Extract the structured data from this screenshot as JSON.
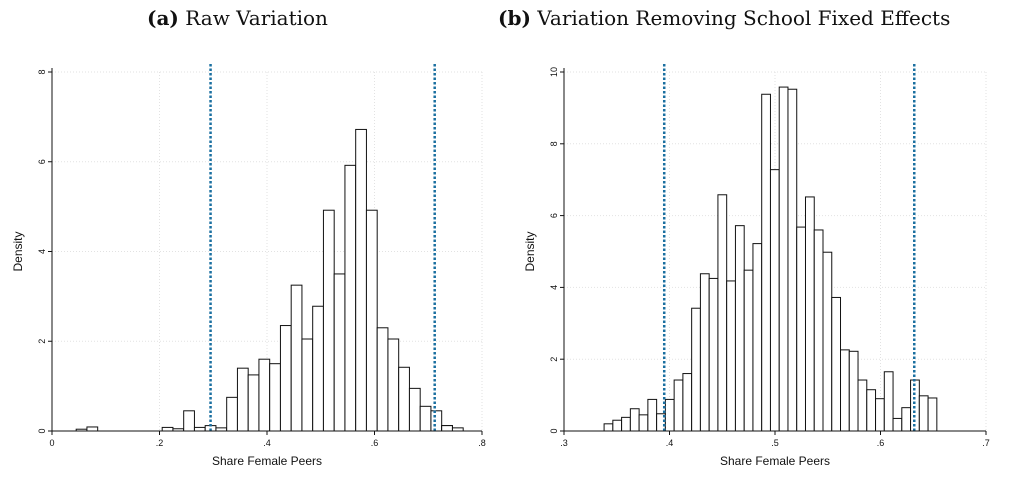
{
  "panels": [
    {
      "letter": "(a)",
      "title": "Raw Variation"
    },
    {
      "letter": "(b)",
      "title": "Variation Removing School Fixed Effects"
    }
  ],
  "chart_data": [
    {
      "type": "bar",
      "title": "Raw Variation",
      "xlabel": "Share Female Peers",
      "ylabel": "Density",
      "xlim": [
        0,
        0.8
      ],
      "ylim": [
        0,
        8
      ],
      "xticks": [
        0,
        0.2,
        0.4,
        0.6,
        0.8
      ],
      "xtick_labels": [
        "0",
        ".2",
        ".4",
        ".6",
        ".8"
      ],
      "yticks": [
        0,
        2,
        4,
        6,
        8
      ],
      "ytick_labels": [
        "0",
        "2",
        "4",
        "6",
        "8"
      ],
      "grid": true,
      "bin_width": 0.02,
      "bin_starts": [
        0.045,
        0.065,
        0.205,
        0.225,
        0.245,
        0.265,
        0.285,
        0.305,
        0.325,
        0.345,
        0.365,
        0.385,
        0.405,
        0.425,
        0.445,
        0.465,
        0.485,
        0.505,
        0.525,
        0.545,
        0.565,
        0.585,
        0.605,
        0.625,
        0.645,
        0.665,
        0.685,
        0.705,
        0.725
      ],
      "values": [
        0.04,
        0.09,
        0.08,
        0.05,
        0.45,
        0.08,
        0.12,
        0.07,
        0.75,
        1.4,
        1.25,
        1.6,
        1.5,
        2.35,
        3.25,
        2.05,
        2.78,
        4.92,
        3.5,
        5.92,
        6.72,
        4.92,
        2.3,
        2.05,
        1.42,
        0.95,
        0.55,
        0.45,
        0.12
      ],
      "extra_bins": [
        {
          "start": 0.725,
          "value": 0.12
        },
        {
          "start": 0.745,
          "value": 0.07
        }
      ],
      "reference_lines": [
        0.295,
        0.712
      ],
      "reference_color": "#1a6fa0"
    },
    {
      "type": "bar",
      "title": "Variation Removing School Fixed Effects",
      "xlabel": "Share Female Peers",
      "ylabel": "Density",
      "xlim": [
        0.3,
        0.7
      ],
      "ylim": [
        0,
        10
      ],
      "xticks": [
        0.3,
        0.4,
        0.5,
        0.6,
        0.7
      ],
      "xtick_labels": [
        ".3",
        ".4",
        ".5",
        ".6",
        ".7"
      ],
      "yticks": [
        0,
        2,
        4,
        6,
        8,
        10
      ],
      "ytick_labels": [
        "0",
        "2",
        "4",
        "6",
        "8",
        "10"
      ],
      "grid": true,
      "bin_width": 0.0083,
      "bin_starts": [
        0.338,
        0.3463,
        0.3546,
        0.3629,
        0.3712,
        0.3795,
        0.3878,
        0.3961,
        0.4044,
        0.4127,
        0.421,
        0.4293,
        0.4376,
        0.4459,
        0.4542,
        0.4625,
        0.4708,
        0.4791,
        0.4874,
        0.4957,
        0.504,
        0.5123,
        0.5206,
        0.5289,
        0.5372,
        0.5455,
        0.5538,
        0.5621,
        0.5704,
        0.5787,
        0.587,
        0.5953,
        0.6036,
        0.6119,
        0.6202,
        0.6285,
        0.6368,
        0.6451
      ],
      "values": [
        0.2,
        0.3,
        0.38,
        0.62,
        0.45,
        0.88,
        0.48,
        0.88,
        1.42,
        1.6,
        3.42,
        4.38,
        4.25,
        6.58,
        4.18,
        5.72,
        4.48,
        5.22,
        9.38,
        7.28,
        9.58,
        9.52,
        5.68,
        6.52,
        5.6,
        4.98,
        3.72,
        2.26,
        2.22,
        1.42,
        1.15,
        0.9,
        1.65,
        0.35,
        0.65,
        1.42,
        0.98,
        0.92
      ],
      "reference_lines": [
        0.395,
        0.632
      ],
      "reference_color": "#1a6fa0"
    }
  ]
}
